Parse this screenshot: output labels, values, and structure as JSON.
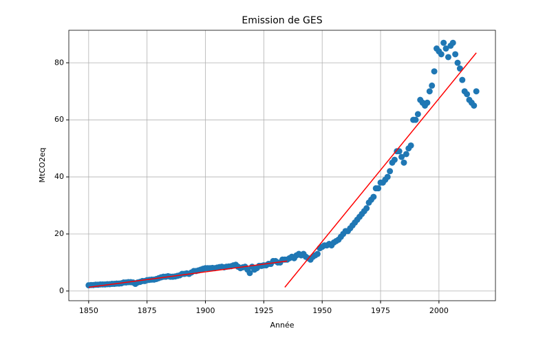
{
  "chart_data": {
    "type": "scatter",
    "title": "Emission de GES",
    "x_label": "Année",
    "y_label": "MtCO2eq",
    "xlim": [
      1841.5,
      2024.2
    ],
    "ylim": [
      -3.4,
      91.4
    ],
    "xticks": [
      1850,
      1875,
      1900,
      1925,
      1950,
      1975,
      2000
    ],
    "yticks": [
      0,
      20,
      40,
      60,
      80
    ],
    "grid": true,
    "series": [
      {
        "color": "#1f77b4",
        "x": [
          1850,
          1851,
          1852,
          1853,
          1854,
          1855,
          1856,
          1857,
          1858,
          1859,
          1860,
          1861,
          1862,
          1863,
          1864,
          1865,
          1866,
          1867,
          1868,
          1869,
          1870,
          1871,
          1872,
          1873,
          1874,
          1875,
          1876,
          1877,
          1878,
          1879,
          1880,
          1881,
          1882,
          1883,
          1884,
          1885,
          1886,
          1887,
          1888,
          1889,
          1890,
          1891,
          1892,
          1893,
          1894,
          1895,
          1896,
          1897,
          1898,
          1899,
          1900,
          1901,
          1902,
          1903,
          1904,
          1905,
          1906,
          1907,
          1908,
          1909,
          1910,
          1911,
          1912,
          1913,
          1914,
          1915,
          1916,
          1917,
          1918,
          1919,
          1920,
          1921,
          1922,
          1923,
          1924,
          1925,
          1926,
          1927,
          1928,
          1929,
          1930,
          1931,
          1932,
          1933,
          1934,
          1935,
          1936,
          1937,
          1938,
          1939,
          1940,
          1941,
          1942,
          1943,
          1944,
          1945,
          1946,
          1947,
          1948,
          1949,
          1950,
          1951,
          1952,
          1953,
          1954,
          1955,
          1956,
          1957,
          1958,
          1959,
          1960,
          1961,
          1962,
          1963,
          1964,
          1965,
          1966,
          1967,
          1968,
          1969,
          1970,
          1971,
          1972,
          1973,
          1974,
          1975,
          1976,
          1977,
          1978,
          1979,
          1980,
          1981,
          1982,
          1983,
          1984,
          1985,
          1986,
          1987,
          1988,
          1989,
          1990,
          1991,
          1992,
          1993,
          1994,
          1995,
          1996,
          1997,
          1998,
          1999,
          2000,
          2001,
          2002,
          2003,
          2004,
          2005,
          2006,
          2007,
          2008,
          2009,
          2010,
          2011,
          2012,
          2013,
          2014,
          2015,
          2016
        ],
        "values": [
          2.0,
          2.1,
          2.1,
          2.2,
          2.2,
          2.3,
          2.3,
          2.3,
          2.4,
          2.4,
          2.5,
          2.5,
          2.6,
          2.6,
          2.7,
          3.0,
          3.0,
          3.1,
          3.1,
          3.0,
          2.5,
          3.0,
          3.2,
          3.5,
          3.5,
          3.8,
          3.9,
          4.0,
          4.0,
          4.2,
          4.5,
          4.8,
          5.0,
          5.0,
          5.2,
          5.0,
          5.0,
          5.1,
          5.3,
          5.5,
          6.0,
          6.0,
          6.2,
          6.0,
          6.5,
          7.0,
          7.0,
          7.2,
          7.5,
          7.8,
          8.0,
          8.0,
          8.0,
          8.1,
          8.0,
          8.2,
          8.4,
          8.5,
          8.3,
          8.5,
          8.6,
          8.7,
          9.0,
          9.2,
          8.5,
          8.0,
          8.3,
          8.5,
          7.5,
          6.3,
          8.5,
          7.5,
          8.0,
          8.8,
          8.8,
          9.0,
          9.0,
          9.5,
          9.5,
          10.5,
          10.5,
          10.0,
          10.0,
          11.0,
          11.0,
          11.0,
          11.5,
          12.0,
          11.5,
          12.5,
          13.0,
          12.5,
          13.0,
          12.0,
          11.5,
          11.0,
          12.0,
          12.5,
          13.0,
          15.0,
          15.5,
          16.0,
          16.0,
          16.5,
          16.0,
          17.0,
          17.5,
          18.0,
          19.0,
          20.0,
          21.0,
          21.0,
          22.0,
          23.0,
          24.0,
          25.0,
          26.0,
          27.0,
          28.0,
          29.0,
          31.0,
          32.0,
          33.0,
          36.0,
          36.0,
          38.0,
          38.0,
          39.0,
          40.0,
          42.0,
          45.0,
          46.0,
          49.0,
          49.0,
          47.0,
          45.0,
          48.0,
          50.0,
          51.0,
          60.0,
          60.0,
          62.0,
          67.0,
          66.0,
          65.0,
          66.0,
          70.0,
          72.0,
          77.0,
          85.0,
          84.0,
          83.0,
          87.0,
          85.0,
          82.0,
          86.0,
          87.0,
          83.0,
          80.0,
          78.0,
          74.0,
          70.0,
          69.0,
          67.0,
          66.0,
          65.0,
          70.0
        ]
      }
    ],
    "lines": [
      {
        "color": "red",
        "x": [
          1850,
          1935
        ],
        "y": [
          1.3,
          10.5
        ]
      },
      {
        "color": "red",
        "x": [
          1934,
          2016
        ],
        "y": [
          1.3,
          83.5
        ]
      }
    ]
  }
}
